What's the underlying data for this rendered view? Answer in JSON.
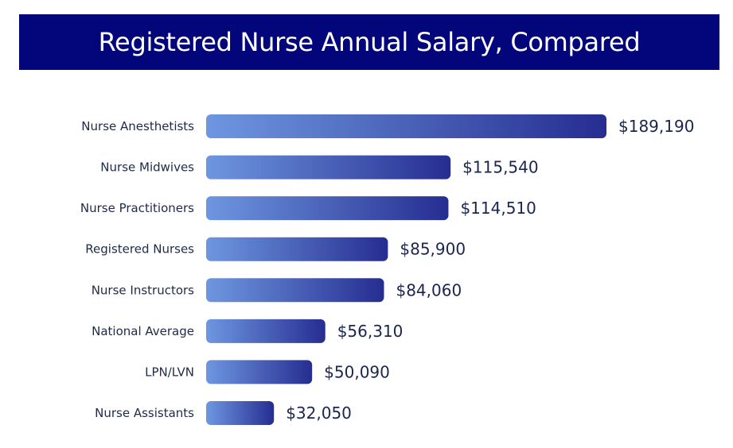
{
  "chart_data": {
    "type": "bar",
    "orientation": "horizontal",
    "title": "Registered Nurse Annual Salary, Compared",
    "categories": [
      "Nurse Anesthetists",
      "Nurse Midwives",
      "Nurse Practitioners",
      "Registered Nurses",
      "Nurse Instructors",
      "National Average",
      "LPN/LVN",
      "Nurse Assistants"
    ],
    "values": [
      189190,
      115540,
      114510,
      85900,
      84060,
      56310,
      50090,
      32050
    ],
    "value_labels": [
      "$189,190",
      "$115,540",
      "$114,510",
      "$85,900",
      "$84,060",
      "$56,310",
      "$50,090",
      "$32,050"
    ],
    "xlabel": "",
    "ylabel": "",
    "grid": false,
    "legend": "none"
  },
  "colors": {
    "banner": "#03067a",
    "bar_start": "#6e97e0",
    "bar_end": "#262d91",
    "title_text": "#ffffff",
    "label_text": "#1e2a4a",
    "value_text": "#1a2550"
  }
}
